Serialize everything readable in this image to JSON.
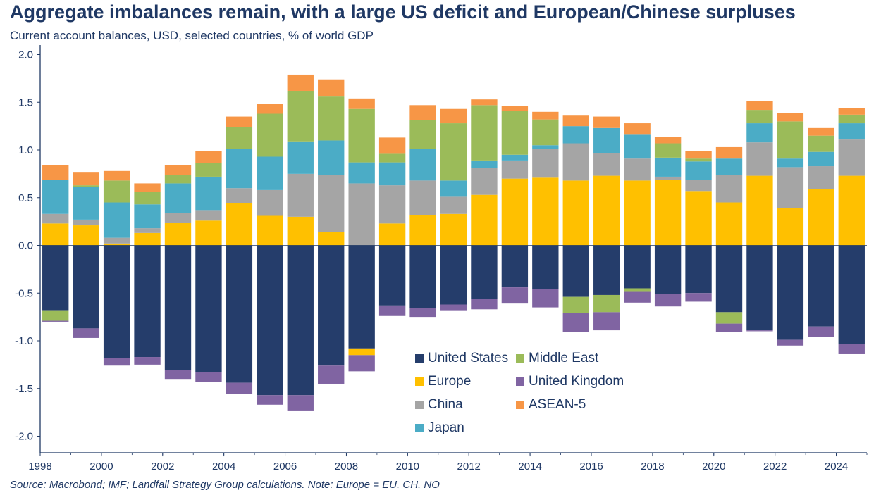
{
  "title": "Aggregate imbalances remain, with a large US deficit and European/Chinese surpluses",
  "subtitle": "Current account balances, USD, selected countries, % of world GDP",
  "source": "Source: Macrobond; IMF; Landfall Strategy Group calculations. Note: Europe = EU, CH, NO",
  "colors": {
    "United States": "#253d6b",
    "Europe": "#ffc000",
    "China": "#a5a5a5",
    "Japan": "#4bacc6",
    "Middle East": "#9bbb59",
    "United Kingdom": "#8064a2",
    "ASEAN-5": "#f79646"
  },
  "chart_data": {
    "type": "bar",
    "stacked": true,
    "title": "Aggregate imbalances remain, with a large US deficit and European/Chinese surpluses",
    "subtitle": "Current account balances, USD, selected countries, % of world GDP",
    "ylim": [
      -2.1,
      2.1
    ],
    "yticks": [
      "2.0",
      "1.5",
      "1.0",
      "0.5",
      "0.0",
      "-0.5",
      "-1.0",
      "-1.5",
      "-2.0"
    ],
    "ytick_values": [
      2.0,
      1.5,
      1.0,
      0.5,
      0.0,
      -0.5,
      -1.0,
      -1.5,
      -2.0
    ],
    "xticks": [
      "1998",
      "2000",
      "2002",
      "2004",
      "2006",
      "2008",
      "2010",
      "2012",
      "2014",
      "2016",
      "2018",
      "2020",
      "2022",
      "2024"
    ],
    "categories": [
      "1998",
      "1999",
      "2000",
      "2001",
      "2002",
      "2003",
      "2004",
      "2005",
      "2006",
      "2007",
      "2008",
      "2009",
      "2010",
      "2011",
      "2012",
      "2013",
      "2014",
      "2015",
      "2016",
      "2017",
      "2018",
      "2019",
      "2020",
      "2021",
      "2022",
      "2023",
      "2024"
    ],
    "legend": [
      "United States",
      "Middle East",
      "Europe",
      "United Kingdom",
      "China",
      "ASEAN-5",
      "Japan"
    ],
    "series": [
      {
        "name": "United States",
        "values": [
          -0.68,
          -0.87,
          -1.18,
          -1.17,
          -1.31,
          -1.33,
          -1.44,
          -1.57,
          -1.57,
          -1.26,
          -1.08,
          -0.63,
          -0.66,
          -0.62,
          -0.56,
          -0.44,
          -0.46,
          -0.54,
          -0.52,
          -0.45,
          -0.51,
          -0.5,
          -0.7,
          -0.89,
          -0.99,
          -0.85,
          -1.03
        ]
      },
      {
        "name": "Europe",
        "values": [
          0.23,
          0.21,
          0.02,
          0.13,
          0.24,
          0.26,
          0.44,
          0.31,
          0.3,
          0.14,
          -0.07,
          0.23,
          0.32,
          0.33,
          0.53,
          0.7,
          0.71,
          0.68,
          0.73,
          0.68,
          0.69,
          0.57,
          0.45,
          0.73,
          0.39,
          0.59,
          0.73
        ]
      },
      {
        "name": "China",
        "values": [
          0.1,
          0.06,
          0.06,
          0.05,
          0.1,
          0.11,
          0.16,
          0.27,
          0.45,
          0.6,
          0.65,
          0.4,
          0.36,
          0.18,
          0.28,
          0.19,
          0.3,
          0.39,
          0.24,
          0.23,
          0.03,
          0.12,
          0.29,
          0.35,
          0.43,
          0.24,
          0.38
        ]
      },
      {
        "name": "Japan",
        "values": [
          0.36,
          0.34,
          0.37,
          0.25,
          0.31,
          0.35,
          0.41,
          0.35,
          0.34,
          0.36,
          0.22,
          0.24,
          0.33,
          0.17,
          0.08,
          0.06,
          0.04,
          0.18,
          0.26,
          0.25,
          0.2,
          0.19,
          0.17,
          0.2,
          0.09,
          0.15,
          0.17
        ]
      },
      {
        "name": "Middle East",
        "values": [
          -0.11,
          0.02,
          0.23,
          0.13,
          0.09,
          0.14,
          0.23,
          0.45,
          0.53,
          0.46,
          0.56,
          0.09,
          0.3,
          0.6,
          0.58,
          0.46,
          0.27,
          -0.17,
          -0.18,
          -0.03,
          0.15,
          0.03,
          -0.12,
          0.14,
          0.39,
          0.17,
          0.09
        ]
      },
      {
        "name": "United Kingdom",
        "values": [
          -0.01,
          -0.1,
          -0.08,
          -0.08,
          -0.09,
          -0.1,
          -0.12,
          -0.1,
          -0.16,
          -0.19,
          -0.17,
          -0.11,
          -0.09,
          -0.06,
          -0.11,
          -0.17,
          -0.19,
          -0.2,
          -0.19,
          -0.12,
          -0.13,
          -0.09,
          -0.09,
          -0.01,
          -0.06,
          -0.11,
          -0.11
        ]
      },
      {
        "name": "ASEAN-5",
        "values": [
          0.15,
          0.14,
          0.1,
          0.09,
          0.1,
          0.13,
          0.11,
          0.1,
          0.17,
          0.18,
          0.11,
          0.17,
          0.16,
          0.15,
          0.06,
          0.05,
          0.08,
          0.11,
          0.12,
          0.12,
          0.07,
          0.08,
          0.12,
          0.09,
          0.09,
          0.08,
          0.07
        ]
      }
    ]
  }
}
